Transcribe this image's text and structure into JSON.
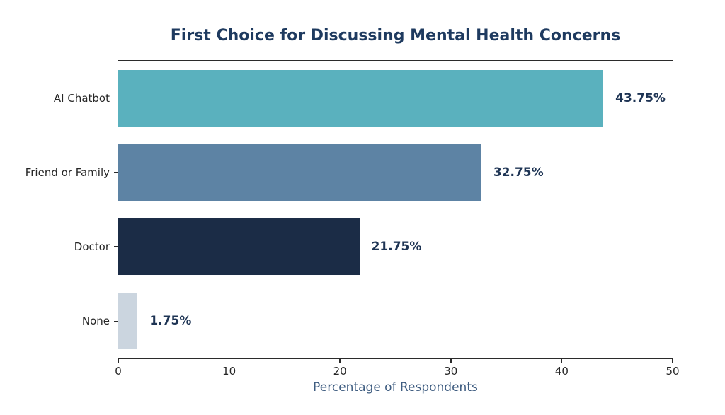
{
  "chart_data": {
    "type": "bar",
    "orientation": "horizontal",
    "title": "First Choice for Discussing Mental Health Concerns",
    "categories": [
      "AI Chatbot",
      "Friend or Family",
      "Doctor",
      "None"
    ],
    "values": [
      43.75,
      32.75,
      21.75,
      1.75
    ],
    "value_labels": [
      "43.75%",
      "32.75%",
      "21.75%",
      "1.75%"
    ],
    "bar_colors": [
      "#5AB1BE",
      "#5D83A4",
      "#1B2C46",
      "#CBD5DF"
    ],
    "xlabel": "Percentage of Respondents",
    "ylabel": "",
    "xlim": [
      0,
      50
    ],
    "x_ticks": [
      "0",
      "10",
      "20",
      "30",
      "40",
      "50"
    ],
    "x_tick_values": [
      0,
      10,
      20,
      30,
      40,
      50
    ],
    "grid": false,
    "legend": "none",
    "bar_height_fraction": 0.76
  },
  "colors": {
    "background": "#FFFFFF",
    "title": "#1E3A5F",
    "value_label": "#1E3454",
    "xlabel": "#3E5C80",
    "tick_label": "#262626",
    "spine": "#2B2B2B"
  }
}
